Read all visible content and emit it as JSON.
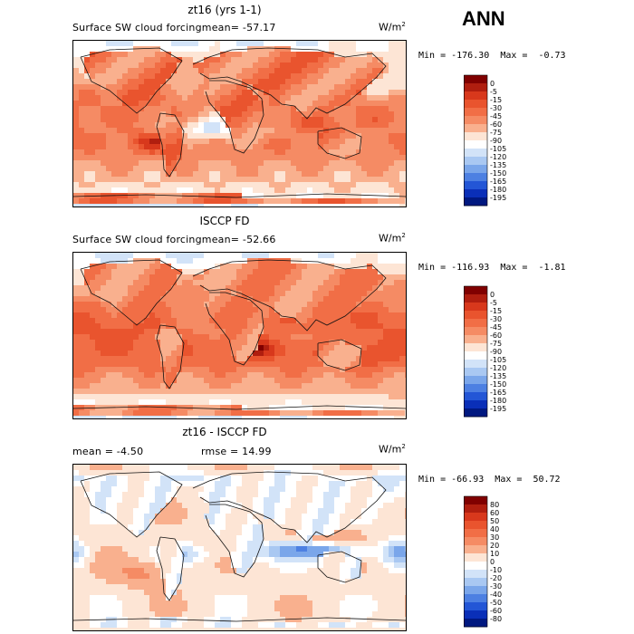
{
  "season": "ANN",
  "units": "W/m",
  "units_sup": "2",
  "chart_data": [
    {
      "type": "heatmap",
      "title": "zt16 (yrs 1-1)",
      "subtitle": "Surface SW cloud forcing",
      "mean_text": "mean= -57.17",
      "min_text": "Min = -176.30",
      "max_text": "Max =  -0.73",
      "colorbar": {
        "levels": [
          "0",
          "-5",
          "-15",
          "-30",
          "-45",
          "-60",
          "-75",
          "-90",
          "-105",
          "-120",
          "-135",
          "-150",
          "-165",
          "-180",
          "-195"
        ],
        "colors": [
          "#800000",
          "#b01e0f",
          "#d8381c",
          "#e9542e",
          "#f16e46",
          "#f58b64",
          "#f9b08e",
          "#fde5d5",
          "#ffffff",
          "#d2e3f8",
          "#a9c8f2",
          "#7aa6ea",
          "#4d80e2",
          "#2356d6",
          "#0a2fb8",
          "#001880"
        ]
      }
    },
    {
      "type": "heatmap",
      "title": "ISCCP FD",
      "subtitle": "Surface SW cloud forcing",
      "mean_text": "mean= -52.66",
      "min_text": "Min = -116.93",
      "max_text": "Max =  -1.81",
      "colorbar": {
        "levels": [
          "0",
          "-5",
          "-15",
          "-30",
          "-45",
          "-60",
          "-75",
          "-90",
          "-105",
          "-120",
          "-135",
          "-150",
          "-165",
          "-180",
          "-195"
        ],
        "colors": [
          "#800000",
          "#b01e0f",
          "#d8381c",
          "#e9542e",
          "#f16e46",
          "#f58b64",
          "#f9b08e",
          "#fde5d5",
          "#ffffff",
          "#d2e3f8",
          "#a9c8f2",
          "#7aa6ea",
          "#4d80e2",
          "#2356d6",
          "#0a2fb8",
          "#001880"
        ]
      }
    },
    {
      "type": "heatmap",
      "title": "zt16 - ISCCP FD",
      "mean_text": "mean =   -4.50",
      "rmse_text": "rmse =   14.99",
      "min_text": "Min = -66.93",
      "max_text": "Max =  50.72",
      "colorbar": {
        "levels": [
          "80",
          "60",
          "50",
          "40",
          "30",
          "20",
          "10",
          "0",
          "-10",
          "-20",
          "-30",
          "-40",
          "-50",
          "-60",
          "-80"
        ],
        "colors": [
          "#800000",
          "#b01e0f",
          "#d8381c",
          "#e9542e",
          "#f16e46",
          "#f58b64",
          "#f9b08e",
          "#fde5d5",
          "#ffffff",
          "#d2e3f8",
          "#a9c8f2",
          "#7aa6ea",
          "#4d80e2",
          "#2356d6",
          "#0a2fb8",
          "#001880"
        ]
      }
    }
  ]
}
